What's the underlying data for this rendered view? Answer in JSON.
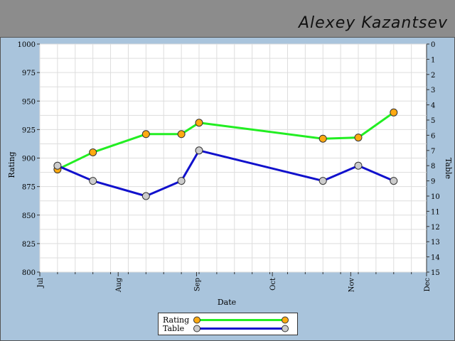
{
  "header": {
    "author": "Alexey Kazantsev"
  },
  "colors": {
    "background": "#a9c4dc",
    "header": "#8c8c8c",
    "plot": "#ffffff",
    "rating_line": "#22ee22",
    "table_line": "#1111cc",
    "rating_marker": "#ffaa11",
    "table_marker": "#cccccc"
  },
  "chart_data": {
    "type": "line",
    "xlabel": "Date",
    "ylabel": "Rating",
    "y2label": "Table",
    "x_ticks": [
      "Jul",
      "Aug",
      "Sep",
      "Oct",
      "Nov",
      "Dec"
    ],
    "x_tick_dates": [
      "2010-07-01",
      "2010-08-01",
      "2010-09-01",
      "2010-10-01",
      "2010-11-01",
      "2010-12-01"
    ],
    "xlim": [
      "2010-07-01",
      "2010-12-01"
    ],
    "ylim": [
      800,
      1000
    ],
    "y_ticks": [
      800,
      825,
      850,
      875,
      900,
      925,
      950,
      975,
      1000
    ],
    "y2lim": [
      15,
      0
    ],
    "y2_ticks": [
      0,
      1,
      2,
      3,
      4,
      5,
      6,
      7,
      8,
      9,
      10,
      11,
      12,
      13,
      14,
      15
    ],
    "y2_inverted": true,
    "grid": true,
    "legend_position": "bottom-center",
    "series": [
      {
        "name": "Rating",
        "axis": "left",
        "x": [
          "2010-07-08",
          "2010-07-22",
          "2010-08-12",
          "2010-08-26",
          "2010-09-02",
          "2010-10-21",
          "2010-11-04",
          "2010-11-18"
        ],
        "values": [
          890,
          905,
          921,
          921,
          931,
          917,
          918,
          940
        ]
      },
      {
        "name": "Table",
        "axis": "right",
        "x": [
          "2010-07-08",
          "2010-07-22",
          "2010-08-12",
          "2010-08-26",
          "2010-09-02",
          "2010-10-21",
          "2010-11-04",
          "2010-11-18"
        ],
        "values": [
          8,
          9,
          10,
          9,
          7,
          9,
          8,
          9
        ]
      }
    ]
  }
}
